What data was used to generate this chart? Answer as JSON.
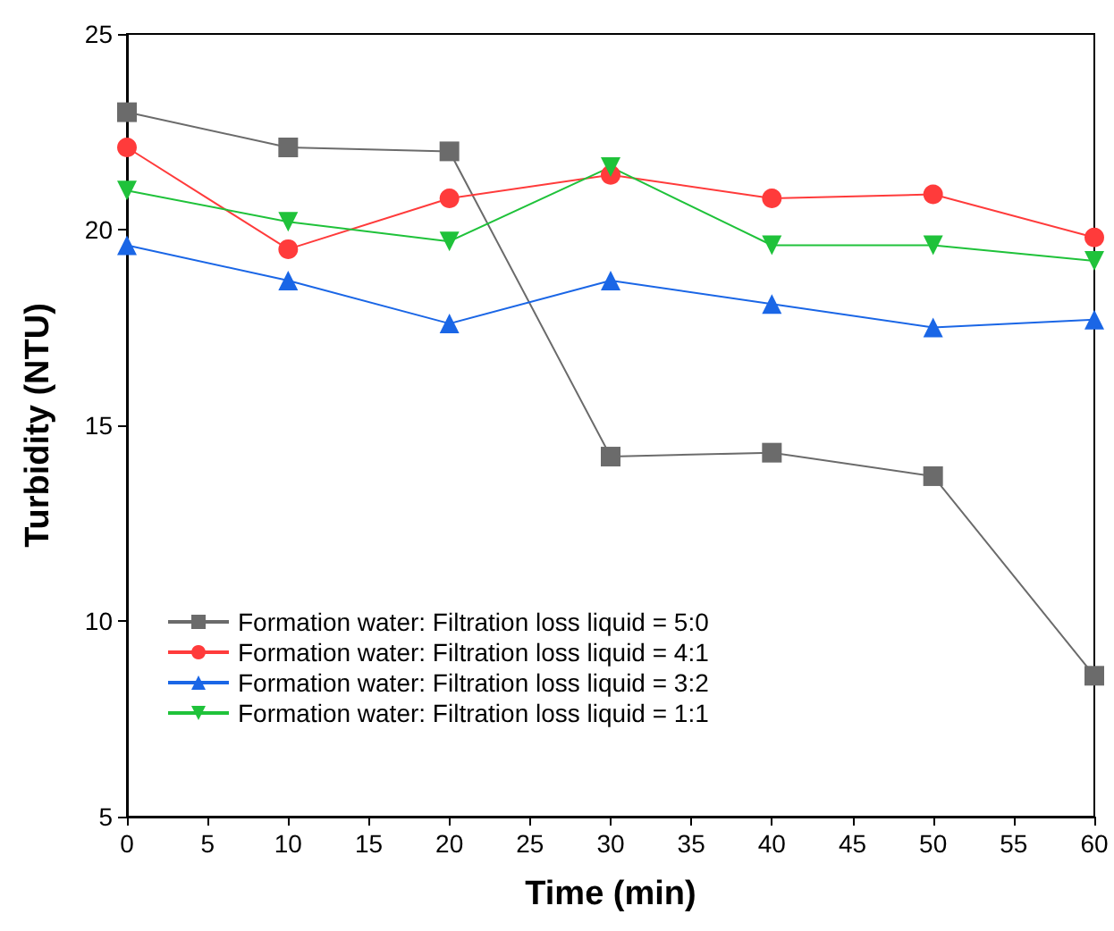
{
  "chart_data": {
    "type": "line",
    "xlabel": "Time (min)",
    "ylabel": "Turbidity (NTU)",
    "x": [
      0,
      10,
      20,
      30,
      40,
      50,
      60
    ],
    "series": [
      {
        "name": "Formation water: Filtration loss liquid = 5:0",
        "color": "#6b6b6b",
        "marker": "square",
        "values": [
          23.0,
          22.1,
          22.0,
          14.2,
          14.3,
          13.7,
          8.6
        ]
      },
      {
        "name": "Formation water: Filtration loss liquid = 4:1",
        "color": "#ff3b3b",
        "marker": "circle",
        "values": [
          22.1,
          19.5,
          20.8,
          21.4,
          20.8,
          20.9,
          19.8
        ]
      },
      {
        "name": "Formation water: Filtration loss liquid = 3:2",
        "color": "#1a66e6",
        "marker": "triangle",
        "values": [
          19.6,
          18.7,
          17.6,
          18.7,
          18.1,
          17.5,
          17.7
        ]
      },
      {
        "name": "Formation water: Filtration loss liquid = 1:1",
        "color": "#1fc23a",
        "marker": "triangle-down",
        "values": [
          21.0,
          20.2,
          19.7,
          21.6,
          19.6,
          19.6,
          19.2
        ]
      }
    ],
    "xlim": [
      0,
      60
    ],
    "xticks": [
      0,
      5,
      10,
      15,
      20,
      25,
      30,
      35,
      40,
      45,
      50,
      55,
      60
    ],
    "ylim": [
      5,
      25
    ],
    "yticks": [
      5,
      10,
      15,
      20,
      25
    ],
    "grid": false,
    "legend": "bottom left",
    "line_style": "solid"
  }
}
